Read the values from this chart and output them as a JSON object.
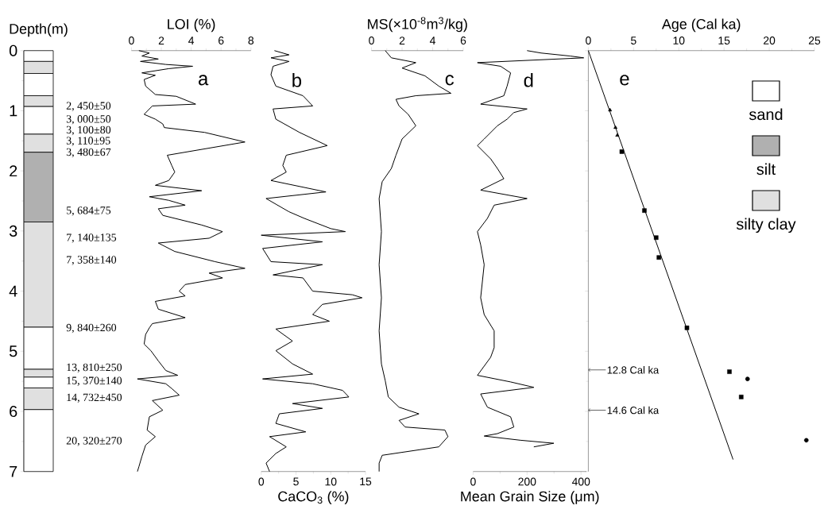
{
  "chart_data": [
    {
      "type": "bar",
      "stacked": true,
      "categories": [
        null
      ],
      "ylabel": "Depth(m)",
      "ylim": [
        7,
        0
      ],
      "yticks": [
        0,
        1,
        2,
        3,
        4,
        5,
        6,
        7
      ],
      "tick_labels": "y",
      "legend": "right",
      "series": [
        {
          "name": "sand",
          "color": "#ffffff",
          "values": [
            0.18
          ]
        },
        {
          "name": "silty clay",
          "color": "#e0e0e0",
          "values": [
            0.2
          ]
        },
        {
          "color": "#ffffff",
          "values": [
            0.37
          ]
        },
        {
          "color": "#e0e0e0",
          "values": [
            0.18
          ]
        },
        {
          "color": "#ffffff",
          "values": [
            0.46
          ]
        },
        {
          "color": "#e0e0e0",
          "values": [
            0.3
          ]
        },
        {
          "name": "silt",
          "color": "#b0b0b0",
          "values": [
            1.16
          ]
        },
        {
          "color": "#e0e0e0",
          "values": [
            1.75
          ]
        },
        {
          "color": "#ffffff",
          "values": [
            0.7
          ]
        },
        {
          "color": "#e0e0e0",
          "values": [
            0.13
          ]
        },
        {
          "color": "#ffffff",
          "values": [
            0.18
          ]
        },
        {
          "color": "#e0e0e0",
          "values": [
            0.36
          ]
        },
        {
          "color": "#ffffff",
          "values": [
            1.03
          ]
        }
      ],
      "annotations": [
        "2, 450±50",
        "3, 000±50",
        "3, 100±80",
        "3, 110±95",
        "3, 480±67",
        "5, 684±75",
        "7, 140±135",
        "7, 358±140",
        "9, 840±260",
        "13, 810±250",
        "15, 370±140",
        "14, 732±450",
        "20, 320±270"
      ]
    },
    {
      "type": "line",
      "xlabel": "LOI (%)",
      "xlim": [
        0,
        8
      ],
      "xticks": [
        0,
        2,
        4,
        6,
        8
      ],
      "ylim": [
        7,
        0
      ],
      "tick_labels": "x",
      "annotations": [
        "a"
      ],
      "series": [
        {
          "color": "#000000",
          "x": [
            0.5,
            1.2,
            0.7,
            1.8,
            0.6,
            2.3,
            4.1,
            2.5,
            0.7,
            1.6,
            0.85,
            0.95,
            1.6,
            3.0,
            4.3,
            1.4,
            0.85,
            1.6,
            2.1,
            2.2,
            4.9,
            7.6,
            2.4,
            2.7,
            2.9,
            2.5,
            1.6,
            4.7,
            1.2,
            2.5,
            3.6,
            1.8,
            2.1,
            4.7,
            6.1,
            5.2,
            1.8,
            2.9,
            5.6,
            7.6,
            5.2,
            6.1,
            3.6,
            3.2,
            3.6,
            1.6,
            1.8,
            3.6,
            1.4,
            1.2,
            0.95,
            0.85,
            1.3,
            1.8,
            2.3,
            3.1,
            0.4,
            2.3,
            2.7,
            3.2,
            1.4,
            2.1,
            1.2,
            1.05,
            1.6,
            0.95,
            0.7,
            0.5,
            0.4
          ],
          "values": [
            0,
            0.04,
            0.09,
            0.14,
            0.18,
            0.23,
            0.26,
            0.3,
            0.37,
            0.41,
            0.48,
            0.59,
            0.73,
            0.76,
            0.89,
            0.92,
            1.06,
            1.14,
            1.22,
            1.28,
            1.36,
            1.52,
            1.74,
            1.91,
            2.02,
            2.16,
            2.24,
            2.33,
            2.43,
            2.49,
            2.57,
            2.63,
            2.74,
            2.9,
            3.01,
            3.12,
            3.2,
            3.34,
            3.51,
            3.62,
            3.7,
            3.78,
            3.89,
            4.0,
            4.08,
            4.17,
            4.3,
            4.44,
            4.54,
            4.61,
            4.72,
            4.88,
            4.99,
            5.16,
            5.32,
            5.4,
            5.46,
            5.54,
            5.62,
            5.73,
            5.82,
            5.98,
            6.09,
            6.31,
            6.42,
            6.56,
            6.75,
            6.92,
            7.0
          ]
        }
      ]
    },
    {
      "type": "line",
      "xlabel": "CaCO$_{3}$ (%)",
      "xlim": [
        0,
        15
      ],
      "xticks": [
        0,
        5,
        10,
        15
      ],
      "ylim": [
        7,
        0
      ],
      "tick_labels": "x",
      "annotations": [
        "b"
      ],
      "series": [
        {
          "color": "#000000",
          "x": [
            1.9,
            4.0,
            1.4,
            4.0,
            1.7,
            1.4,
            2.1,
            6.0,
            7.4,
            1.7,
            2.1,
            5.5,
            9.5,
            3.6,
            3.1,
            3.6,
            1.4,
            9.3,
            0.7,
            4.0,
            6.2,
            10.0,
            12.1,
            0,
            8.8,
            0.2,
            1.4,
            8.8,
            1.7,
            6.0,
            7.4,
            13.1,
            14.5,
            8.8,
            7.4,
            9.8,
            2.1,
            4.5,
            2.1,
            4.5,
            7.4,
            0.2,
            7.4,
            11.7,
            12.6,
            4.5,
            8.8,
            2.6,
            2.1,
            6.4,
            1.2,
            3.6,
            2.1,
            0.7,
            1.2
          ],
          "values": [
            0,
            0.07,
            0.12,
            0.18,
            0.26,
            0.4,
            0.59,
            0.75,
            0.92,
            0.97,
            1.14,
            1.36,
            1.58,
            1.74,
            1.91,
            2.02,
            2.16,
            2.35,
            2.46,
            2.68,
            2.79,
            2.96,
            3.01,
            3.07,
            3.18,
            3.29,
            3.51,
            3.56,
            3.73,
            3.78,
            4.0,
            4.06,
            4.11,
            4.22,
            4.39,
            4.5,
            4.63,
            4.83,
            4.99,
            5.21,
            5.38,
            5.46,
            5.54,
            5.65,
            5.76,
            5.87,
            5.95,
            6.04,
            6.2,
            6.34,
            6.42,
            6.59,
            6.7,
            6.86,
            7.0
          ]
        }
      ]
    },
    {
      "type": "line",
      "xlabel": "MS(×10$^{-8}$m$^{3}$/kg)",
      "xlim": [
        0,
        6
      ],
      "xticks": [
        0,
        2,
        4,
        6
      ],
      "ylim": [
        7,
        0
      ],
      "tick_labels": "x",
      "annotations": [
        "c"
      ],
      "series": [
        {
          "color": "#000000",
          "x": [
            0.9,
            1.3,
            2.9,
            2.0,
            3.5,
            4.4,
            5.2,
            2.9,
            1.6,
            1.8,
            2.4,
            2.9,
            2.0,
            1.6,
            1.3,
            0.7,
            0.5,
            0.65,
            0.5,
            0.65,
            0.5,
            0.65,
            0.9,
            1.1,
            1.8,
            3.1,
            1.8,
            2.2,
            4.8,
            5.0,
            4.4,
            0.7,
            0.5,
            0.5
          ],
          "values": [
            0,
            0.12,
            0.2,
            0.29,
            0.42,
            0.59,
            0.71,
            0.75,
            0.81,
            0.92,
            1.06,
            1.25,
            1.47,
            1.74,
            1.96,
            2.18,
            2.46,
            3.01,
            3.56,
            4.11,
            4.66,
            5.21,
            5.49,
            5.76,
            5.93,
            6.04,
            6.15,
            6.26,
            6.31,
            6.42,
            6.59,
            6.73,
            6.86,
            7.0
          ]
        }
      ]
    },
    {
      "type": "line",
      "xlabel": "Mean Grain Size (μm)",
      "xlim": [
        0,
        420
      ],
      "xticks": [
        0,
        200,
        400
      ],
      "ylim": [
        7,
        0
      ],
      "tick_labels": "x",
      "annotations": [
        "d"
      ],
      "series": [
        {
          "color": "#000000",
          "x": [
            200,
            252,
            360,
            410,
            16,
            102,
            139,
            126,
            114,
            28,
            200,
            151,
            126,
            90,
            41,
            16,
            65,
            90,
            114,
            28,
            200,
            78,
            53,
            16,
            28,
            41,
            28,
            41,
            78,
            78,
            65,
            16,
            139,
            225,
            28,
            53,
            139,
            151,
            90,
            41,
            176,
            299,
            225
          ],
          "values": [
            0,
            0.04,
            0.09,
            0.12,
            0.2,
            0.26,
            0.37,
            0.59,
            0.75,
            0.89,
            0.97,
            1.03,
            1.14,
            1.25,
            1.47,
            1.58,
            1.8,
            1.96,
            2.13,
            2.32,
            2.46,
            2.57,
            2.79,
            3.01,
            3.23,
            3.56,
            4.11,
            4.39,
            4.66,
            4.94,
            5.1,
            5.4,
            5.51,
            5.6,
            5.71,
            5.93,
            6.09,
            6.26,
            6.37,
            6.41,
            6.48,
            6.53,
            6.59
          ]
        }
      ]
    },
    {
      "type": "scatter",
      "xlabel": "Age (Cal ka)",
      "xlim": [
        0,
        25
      ],
      "xticks": [
        0,
        5,
        10,
        15,
        20,
        25
      ],
      "ylim": [
        7,
        0
      ],
      "yticks": [
        0,
        1,
        2,
        3,
        4,
        5,
        6,
        7
      ],
      "tick_labels": "x",
      "annotations": [
        "e",
        {
          "text": "12.8 Cal ka",
          "x": 0,
          "y": 5.31
        },
        {
          "text": "14.6 Cal ka",
          "x": 0,
          "y": 5.98
        }
      ],
      "series": [
        {
          "marker": "triangle",
          "color": "#000000",
          "x": [
            2.4,
            3.0,
            3.2
          ],
          "values": [
            0.99,
            1.28,
            1.41
          ]
        },
        {
          "marker": "square",
          "color": "#000000",
          "x": [
            3.7,
            6.2,
            7.5,
            7.8,
            10.9,
            15.6,
            16.9
          ],
          "values": [
            1.68,
            2.66,
            3.11,
            3.44,
            4.61,
            5.34,
            5.76
          ]
        },
        {
          "marker": "circle",
          "color": "#000000",
          "x": [
            17.6,
            24.1
          ],
          "values": [
            5.46,
            6.48
          ]
        },
        {
          "type": "line",
          "color": "#000000",
          "x": [
            0,
            16.0
          ],
          "values": [
            0,
            6.8
          ]
        }
      ]
    }
  ]
}
